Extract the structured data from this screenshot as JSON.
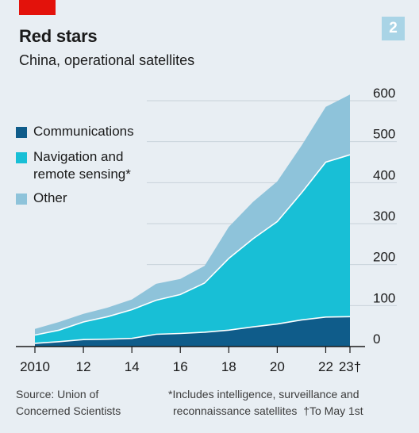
{
  "header": {
    "title": "Red stars",
    "subtitle": "China, operational satellites",
    "badge": "2"
  },
  "legend": {
    "communications": "Communications",
    "navigation_line1": "Navigation and",
    "navigation_line2": "remote sensing*",
    "other": "Other"
  },
  "footer": {
    "source_line1": "Source: Union of",
    "source_line2": "Concerned Scientists",
    "note_line1": "*Includes intelligence, surveillance and",
    "note_line2": "reconnaissance satellites",
    "note_line2_tail": "†To May 1st"
  },
  "colors": {
    "communications": "#0f5c8a",
    "navigation": "#18bfd6",
    "other": "#8ec3da",
    "background": "#e8eef3",
    "accent": "#e3120b"
  },
  "chart_data": {
    "type": "area",
    "stacked": true,
    "title": "Red stars",
    "subtitle": "China, operational satellites",
    "x": [
      2010,
      2011,
      2012,
      2013,
      2014,
      2015,
      2016,
      2017,
      2018,
      2019,
      2020,
      2021,
      2022,
      2023
    ],
    "x_tick_labels": [
      "2010",
      "12",
      "14",
      "16",
      "18",
      "20",
      "22",
      "23†"
    ],
    "x_tick_values": [
      2010,
      2012,
      2014,
      2016,
      2018,
      2020,
      2022,
      2023
    ],
    "ylim": [
      0,
      600
    ],
    "y_ticks": [
      0,
      100,
      200,
      300,
      400,
      500,
      600
    ],
    "y_axis_side": "right",
    "grid": true,
    "legend_position": "top-left",
    "series": [
      {
        "name": "Communications",
        "values": [
          8,
          12,
          17,
          18,
          20,
          30,
          32,
          35,
          40,
          48,
          55,
          65,
          72,
          73
        ]
      },
      {
        "name": "Navigation and remote sensing*",
        "values": [
          20,
          28,
          43,
          55,
          70,
          83,
          95,
          120,
          175,
          215,
          250,
          310,
          378,
          395
        ]
      },
      {
        "name": "Other",
        "values": [
          15,
          20,
          20,
          22,
          25,
          40,
          38,
          42,
          77,
          90,
          98,
          115,
          135,
          147
        ]
      }
    ]
  }
}
